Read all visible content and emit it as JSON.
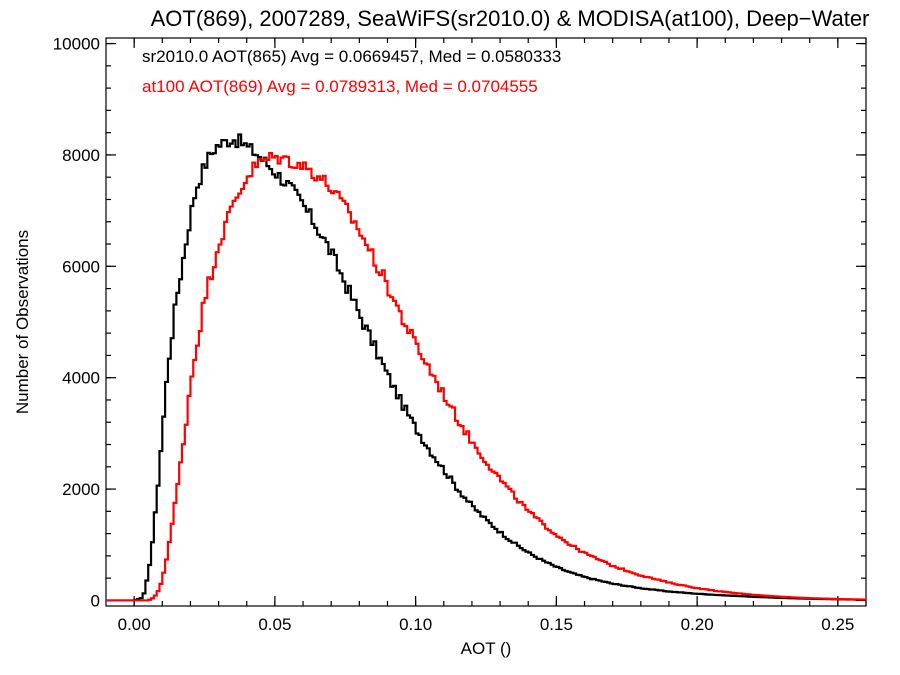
{
  "chart_data": {
    "type": "line",
    "style": "histogram-step",
    "title": "AOT(869), 2007289, SeaWiFS(sr2010.0) & MODISA(at100), Deep−Water",
    "xlabel": "AOT ()",
    "ylabel": "Number of Observations",
    "xlim": [
      -0.01,
      0.26
    ],
    "ylim": [
      -100,
      10100
    ],
    "xticks": [
      0.0,
      0.05,
      0.1,
      0.15,
      0.2,
      0.25
    ],
    "xtick_labels": [
      "0.00",
      "0.05",
      "0.10",
      "0.15",
      "0.20",
      "0.25"
    ],
    "yticks": [
      0,
      2000,
      4000,
      6000,
      8000,
      10000
    ],
    "ytick_labels": [
      "0",
      "2000",
      "4000",
      "6000",
      "8000",
      "10000"
    ],
    "grid": false,
    "bin_width": 0.001,
    "annotations": [
      {
        "text": "sr2010.0 AOT(865) Avg = 0.0669457, Med = 0.0580333",
        "color": "#000000"
      },
      {
        "text": "at100 AOT(869) Avg = 0.0789313, Med = 0.0704555",
        "color": "#ff0000"
      }
    ],
    "series": [
      {
        "color": "#000000",
        "x": [
          -0.01,
          0.0,
          0.003,
          0.004,
          0.006,
          0.008,
          0.01,
          0.012,
          0.015,
          0.018,
          0.02,
          0.022,
          0.025,
          0.027,
          0.029,
          0.031,
          0.033,
          0.035,
          0.037,
          0.039,
          0.041,
          0.043,
          0.046,
          0.05,
          0.055,
          0.06,
          0.065,
          0.07,
          0.075,
          0.08,
          0.085,
          0.09,
          0.095,
          0.1,
          0.105,
          0.11,
          0.115,
          0.12,
          0.125,
          0.13,
          0.135,
          0.14,
          0.145,
          0.15,
          0.155,
          0.16,
          0.17,
          0.18,
          0.19,
          0.2,
          0.21,
          0.22,
          0.23,
          0.24,
          0.25,
          0.26
        ],
        "y": [
          0,
          0,
          50,
          200,
          800,
          1800,
          3000,
          4200,
          5400,
          6300,
          6900,
          7400,
          7800,
          8000,
          8150,
          8200,
          8250,
          8300,
          8250,
          8200,
          8100,
          8050,
          7900,
          7700,
          7450,
          7100,
          6700,
          6250,
          5700,
          5150,
          4600,
          4050,
          3550,
          3100,
          2700,
          2350,
          2000,
          1700,
          1450,
          1230,
          1030,
          860,
          720,
          600,
          500,
          420,
          300,
          220,
          160,
          120,
          90,
          65,
          45,
          30,
          20,
          12
        ]
      },
      {
        "color": "#ff0000",
        "x": [
          -0.01,
          0.0,
          0.005,
          0.007,
          0.009,
          0.011,
          0.013,
          0.015,
          0.018,
          0.02,
          0.023,
          0.025,
          0.028,
          0.03,
          0.033,
          0.035,
          0.038,
          0.04,
          0.043,
          0.046,
          0.049,
          0.052,
          0.055,
          0.058,
          0.062,
          0.066,
          0.07,
          0.075,
          0.08,
          0.085,
          0.09,
          0.095,
          0.1,
          0.105,
          0.11,
          0.115,
          0.12,
          0.125,
          0.13,
          0.135,
          0.14,
          0.145,
          0.15,
          0.155,
          0.16,
          0.17,
          0.18,
          0.19,
          0.2,
          0.21,
          0.22,
          0.23,
          0.24,
          0.25,
          0.26
        ],
        "y": [
          0,
          0,
          0,
          50,
          200,
          600,
          1200,
          1900,
          3000,
          3900,
          4800,
          5400,
          6000,
          6400,
          6800,
          7100,
          7400,
          7600,
          7800,
          7900,
          7950,
          7950,
          7900,
          7850,
          7750,
          7600,
          7400,
          7050,
          6650,
          6150,
          5650,
          5100,
          4600,
          4150,
          3700,
          3250,
          2850,
          2500,
          2180,
          1880,
          1600,
          1380,
          1180,
          1000,
          850,
          620,
          450,
          320,
          220,
          150,
          100,
          65,
          40,
          25,
          15
        ]
      }
    ]
  }
}
